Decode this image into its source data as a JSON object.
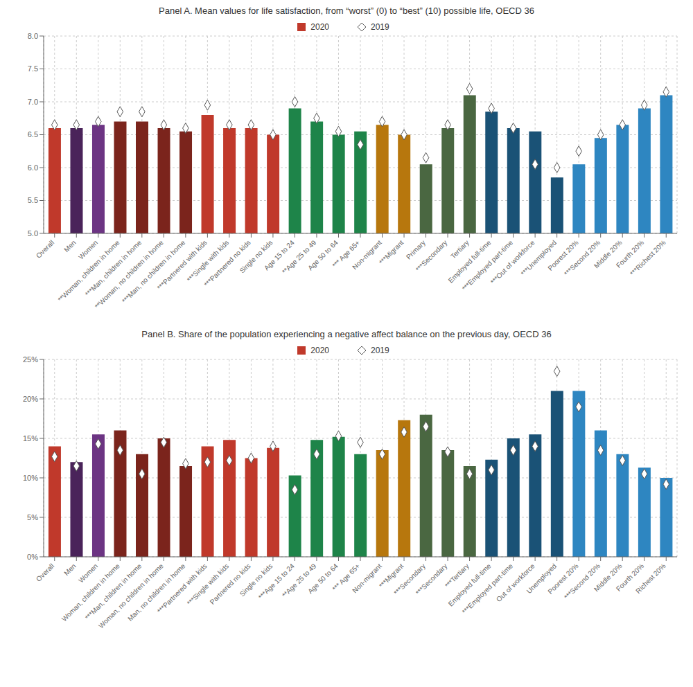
{
  "chart_data": [
    {
      "type": "bar",
      "title": "Panel A. Mean values for life satisfaction, from “worst” (0) to “best” (10) possible life, OECD 36",
      "categories": [
        "Overall",
        "Men",
        "Women",
        "**Woman, children in home",
        "***Man, children in home",
        "**Woman, no children in home",
        "***Man, no children in home",
        "***Partnered with kids",
        "***Single with kids",
        "***Partnered no kids",
        "Single no kids",
        "Age 15 to 24",
        "**Age 25 to 49",
        "Age 50 to 64",
        "*** Age 65+",
        "Non-migrant",
        "***Migrant",
        "Primary",
        "***Secondary",
        "Tertiary",
        "Employed full-time",
        "***Employed part-time",
        "***Out of workforce",
        "***Unemployed",
        "Poorest 20%",
        "***Second 20%",
        "Middle 20%",
        "Fourth 20%",
        "***Richest 20%"
      ],
      "series": [
        {
          "name": "2020",
          "type": "bar",
          "color": "#C0392B",
          "colors": [
            "#C0392B",
            "#4A235A",
            "#6C3483",
            "#7B241C",
            "#7B241C",
            "#7B241C",
            "#7B241C",
            "#C0392B",
            "#C0392B",
            "#C0392B",
            "#C0392B",
            "#1E8449",
            "#1E8449",
            "#1E8449",
            "#1E8449",
            "#B7770D",
            "#B7770D",
            "#4A6741",
            "#4A6741",
            "#4A6741",
            "#1A5276",
            "#1A5276",
            "#1A5276",
            "#1A5276",
            "#2E86C1",
            "#2E86C1",
            "#2E86C1",
            "#2E86C1",
            "#2E86C1"
          ],
          "values": [
            6.6,
            6.6,
            6.65,
            6.7,
            6.7,
            6.6,
            6.55,
            6.8,
            6.6,
            6.6,
            6.5,
            6.9,
            6.7,
            6.5,
            6.55,
            6.65,
            6.5,
            6.05,
            6.6,
            7.1,
            6.85,
            6.6,
            6.55,
            5.85,
            6.05,
            6.45,
            6.65,
            6.9,
            7.1
          ]
        },
        {
          "name": "2019",
          "type": "scatter",
          "marker": "diamond",
          "color": "#FFFFFF",
          "values": [
            6.65,
            6.65,
            6.7,
            6.85,
            6.85,
            6.65,
            6.6,
            6.95,
            6.65,
            6.65,
            6.5,
            7.0,
            6.75,
            6.55,
            6.35,
            6.7,
            6.5,
            6.15,
            6.65,
            7.2,
            6.9,
            6.6,
            6.05,
            6.0,
            6.25,
            6.5,
            6.65,
            6.95,
            7.15
          ]
        }
      ],
      "ylim": [
        5.0,
        8.0
      ],
      "yticks": [
        {
          "value": 5,
          "label": "5.0"
        },
        {
          "value": 5.5,
          "label": "5.5"
        },
        {
          "value": 6,
          "label": "6.0"
        },
        {
          "value": 6.5,
          "label": "6.5"
        },
        {
          "value": 7,
          "label": "7.0"
        },
        {
          "value": 7.5,
          "label": "7.5"
        },
        {
          "value": 8,
          "label": "8.0"
        }
      ],
      "grid": true,
      "legend": "top"
    },
    {
      "type": "bar",
      "title": "Panel B. Share of the population experiencing a negative affect balance on the previous day, OECD 36",
      "categories": [
        "Overall",
        "Men",
        "Women",
        "Woman, children in home",
        "***Man, children in home",
        "Woman, no children in home",
        "Man, no children in home",
        "***Partnered with kids",
        "***Single with kids",
        "Partnered no kids",
        "Single no kids",
        "***Age 15 to 24",
        "**Age 25 to 49",
        "Age 50 to 64",
        "*** Age 65+",
        "Non-migrant",
        "***Migrant",
        "***Secondary",
        "***Secondary",
        "***Tertiary",
        "Employed full-time",
        "***Employed part-time",
        "Out of workforce",
        "Unemployed",
        "Poorest 20%",
        "***Second 20%",
        "Middle 20%",
        "Fourth 20%",
        "Richest 20%"
      ],
      "series": [
        {
          "name": "2020",
          "type": "bar",
          "color": "#C0392B",
          "colors": [
            "#C0392B",
            "#4A235A",
            "#6C3483",
            "#7B241C",
            "#7B241C",
            "#7B241C",
            "#7B241C",
            "#C0392B",
            "#C0392B",
            "#C0392B",
            "#C0392B",
            "#1E8449",
            "#1E8449",
            "#1E8449",
            "#1E8449",
            "#B7770D",
            "#B7770D",
            "#4A6741",
            "#4A6741",
            "#4A6741",
            "#1A5276",
            "#1A5276",
            "#1A5276",
            "#1A5276",
            "#2E86C1",
            "#2E86C1",
            "#2E86C1",
            "#2E86C1",
            "#2E86C1"
          ],
          "values": [
            0.14,
            0.12,
            0.155,
            0.16,
            0.13,
            0.15,
            0.115,
            0.14,
            0.148,
            0.125,
            0.138,
            0.103,
            0.148,
            0.152,
            0.13,
            0.135,
            0.173,
            0.18,
            0.135,
            0.115,
            0.123,
            0.15,
            0.155,
            0.21,
            0.21,
            0.16,
            0.13,
            0.113,
            0.1
          ]
        },
        {
          "name": "2019",
          "type": "scatter",
          "marker": "diamond",
          "color": "#FFFFFF",
          "values": [
            0.127,
            0.115,
            0.143,
            0.135,
            0.105,
            0.145,
            0.118,
            0.12,
            0.122,
            0.125,
            0.14,
            0.085,
            0.13,
            0.153,
            0.145,
            0.13,
            0.158,
            0.165,
            0.133,
            0.105,
            0.11,
            0.135,
            0.14,
            0.235,
            0.19,
            0.135,
            0.122,
            0.105,
            0.092
          ]
        }
      ],
      "ylim": [
        0.0,
        0.25
      ],
      "yticks": [
        {
          "value": 0,
          "label": "0%"
        },
        {
          "value": 0.05,
          "label": "5%"
        },
        {
          "value": 0.1,
          "label": "10%"
        },
        {
          "value": 0.15,
          "label": "15%"
        },
        {
          "value": 0.2,
          "label": "20%"
        },
        {
          "value": 0.25,
          "label": "25%"
        }
      ],
      "grid": true,
      "legend": "top"
    }
  ]
}
